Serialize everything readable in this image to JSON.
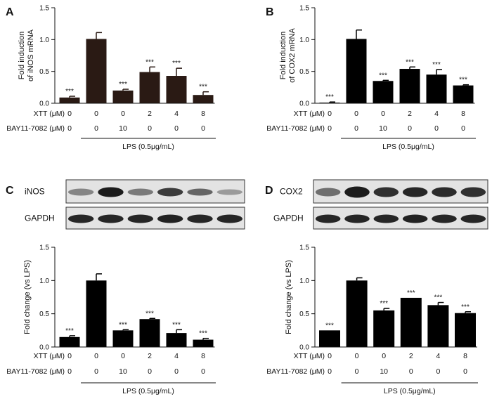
{
  "conditions": {
    "xtt_label": "XTT (μM)",
    "bay_label": "BAY11-7082 (μM)",
    "xtt_values": [
      "0",
      "0",
      "0",
      "2",
      "4",
      "8"
    ],
    "bay_values": [
      "0",
      "0",
      "10",
      "0",
      "0",
      "0"
    ],
    "lps_label": "LPS (0.5μg/mL)"
  },
  "blots": {
    "left": [
      "iNOS",
      "GAPDH"
    ],
    "right": [
      "COX2",
      "GAPDH"
    ]
  },
  "chart_data": [
    {
      "panel": "A",
      "type": "bar",
      "ylabel": "Fold induction of iNOS mRNA",
      "ylim": [
        0,
        1.5
      ],
      "yticks": [
        "0.0",
        "0.5",
        "1.0",
        "1.5"
      ],
      "bar_color": "#2a1a14",
      "values": [
        0.09,
        1.01,
        0.2,
        0.49,
        0.43,
        0.13
      ],
      "errors": [
        0.02,
        0.1,
        0.02,
        0.08,
        0.12,
        0.05
      ],
      "significance": [
        "***",
        "",
        "***",
        "***",
        "***",
        "***"
      ]
    },
    {
      "panel": "B",
      "type": "bar",
      "ylabel": "Fold induction of COX2 mRNA",
      "ylim": [
        0,
        1.5
      ],
      "yticks": [
        "0.0",
        "0.5",
        "1.0",
        "1.5"
      ],
      "bar_color": "#000000",
      "values": [
        0.01,
        1.01,
        0.35,
        0.54,
        0.45,
        0.28
      ],
      "errors": [
        0.01,
        0.14,
        0.01,
        0.03,
        0.08,
        0.01
      ],
      "significance": [
        "***",
        "",
        "***",
        "***",
        "***",
        "***"
      ]
    },
    {
      "panel": "C",
      "type": "bar",
      "ylabel": "Fold change (vs LPS)",
      "ylim": [
        0,
        1.5
      ],
      "yticks": [
        "0.0",
        "0.5",
        "1.0",
        "1.5"
      ],
      "bar_color": "#000000",
      "values": [
        0.15,
        1.0,
        0.25,
        0.42,
        0.21,
        0.11
      ],
      "errors": [
        0.02,
        0.1,
        0.01,
        0.01,
        0.05,
        0.02
      ],
      "significance": [
        "***",
        "",
        "***",
        "***",
        "***",
        "***"
      ]
    },
    {
      "panel": "D",
      "type": "bar",
      "ylabel": "Fold change (vs LPS)",
      "ylim": [
        0,
        1.5
      ],
      "yticks": [
        "0.0",
        "0.5",
        "1.0",
        "1.5"
      ],
      "bar_color": "#000000",
      "values": [
        0.25,
        1.0,
        0.55,
        0.74,
        0.63,
        0.51
      ],
      "errors": [
        0.0,
        0.04,
        0.03,
        0.0,
        0.04,
        0.02
      ],
      "significance": [
        "***",
        "",
        "***",
        "***",
        "***",
        "***"
      ]
    }
  ]
}
